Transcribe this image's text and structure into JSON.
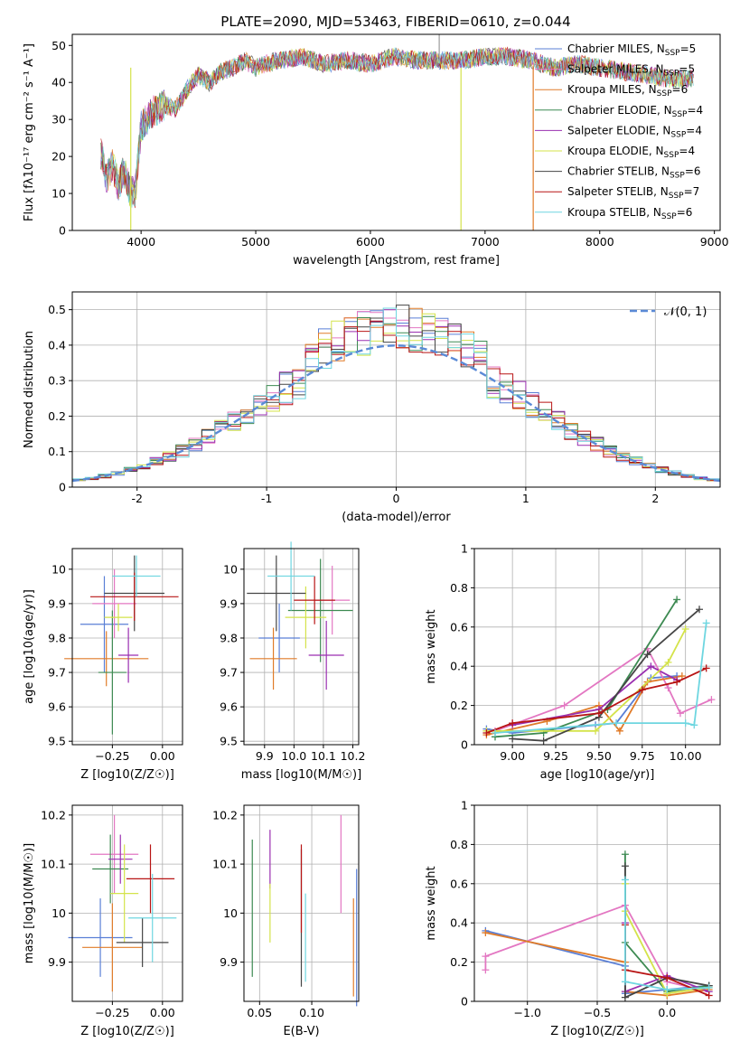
{
  "figure_title": "PLATE=2090, MJD=53463, FIBERID=0610, z=0.044",
  "legend_models": [
    {
      "label": "Chabrier MILES, N",
      "n": "5",
      "color": "#5a7fd6"
    },
    {
      "label": "Salpeter MILES, N",
      "n": "5",
      "color": "#e377c2"
    },
    {
      "label": "Kroupa MILES, N",
      "n": "6",
      "color": "#e07b28"
    },
    {
      "label": "Chabrier ELODIE, N",
      "n": "4",
      "color": "#3d8a52"
    },
    {
      "label": "Salpeter ELODIE, N",
      "n": "4",
      "color": "#9a2fb0"
    },
    {
      "label": "Kroupa ELODIE, N",
      "n": "4",
      "color": "#d4e34a"
    },
    {
      "label": "Chabrier STELIB, N",
      "n": "6",
      "color": "#454545"
    },
    {
      "label": "Salpeter STELIB, N",
      "n": "7",
      "color": "#b81414"
    },
    {
      "label": "Kroupa STELIB, N",
      "n": "6",
      "color": "#6ed6e0"
    }
  ],
  "ssp_subscript": "SSP",
  "chart_data": [
    {
      "id": "spectrum",
      "type": "line",
      "xlabel": "wavelength [Angstrom, rest frame]",
      "ylabel": "Flux [fλ10⁻¹⁷ erg cm⁻² s⁻¹ A⁻¹]",
      "xlim": [
        3400,
        9050
      ],
      "ylim": [
        0,
        53
      ],
      "xticks": [
        4000,
        5000,
        6000,
        7000,
        8000,
        9000
      ],
      "yticks": [
        0,
        10,
        20,
        30,
        40,
        50
      ],
      "grid": false,
      "legend_position": "right",
      "x": [
        3650,
        3700,
        3750,
        3800,
        3850,
        3900,
        3950,
        4000,
        4100,
        4200,
        4300,
        4400,
        4500,
        4600,
        4700,
        4800,
        4900,
        5000,
        5200,
        5400,
        5600,
        5800,
        6000,
        6200,
        6400,
        6600,
        6800,
        7000,
        7200,
        7400,
        7600,
        7800,
        8000,
        8200,
        8400,
        8600,
        8800
      ],
      "y": [
        21,
        14,
        18,
        12,
        16,
        11,
        10,
        28,
        32,
        34,
        33,
        38,
        42,
        40,
        43,
        44,
        46,
        44,
        46,
        47,
        45,
        46,
        45,
        47,
        46,
        46,
        46,
        47,
        47,
        46,
        44,
        45,
        44,
        43,
        42,
        41,
        41
      ]
    },
    {
      "id": "residuals",
      "type": "histogram",
      "xlabel": "(data-model)/error",
      "ylabel": "Normed distribution",
      "xlim": [
        -2.5,
        2.5
      ],
      "ylim": [
        0,
        0.55
      ],
      "xticks": [
        -2,
        -1,
        0,
        1,
        2
      ],
      "yticks": [
        0.0,
        0.1,
        0.2,
        0.3,
        0.4,
        0.5
      ],
      "grid": true,
      "legend_position": "top-right",
      "gaussian_label": "𝒩(0, 1)",
      "bin_width": 0.1
    },
    {
      "id": "age-vs-Z",
      "type": "errorbar",
      "xlabel": "Z [log10(Z/Z☉)]",
      "ylabel": "age  [log10(age/yr)]",
      "xlim": [
        -0.45,
        0.1
      ],
      "ylim": [
        9.49,
        10.06
      ],
      "xticks": [
        -0.25,
        0.0
      ],
      "xticklabels": [
        "−0.25",
        "0.00"
      ],
      "yticks": [
        9.5,
        9.6,
        9.7,
        9.8,
        9.9,
        10.0
      ],
      "grid": true,
      "points": [
        {
          "x": -0.29,
          "xe": 0.12,
          "y": 9.84,
          "ye": 0.14
        },
        {
          "x": -0.24,
          "xe": 0.11,
          "y": 9.9,
          "ye": 0.1
        },
        {
          "x": -0.28,
          "xe": 0.21,
          "y": 9.74,
          "ye": 0.08
        },
        {
          "x": -0.25,
          "xe": 0.07,
          "y": 9.7,
          "ye": 0.18
        },
        {
          "x": -0.17,
          "xe": 0.05,
          "y": 9.75,
          "ye": 0.08
        },
        {
          "x": -0.22,
          "xe": 0.07,
          "y": 9.86,
          "ye": 0.04
        },
        {
          "x": -0.14,
          "xe": 0.15,
          "y": 9.93,
          "ye": 0.11
        },
        {
          "x": -0.14,
          "xe": 0.22,
          "y": 9.92,
          "ye": 0.07
        },
        {
          "x": -0.13,
          "xe": 0.12,
          "y": 9.98,
          "ye": 0.06
        }
      ]
    },
    {
      "id": "age-vs-mass",
      "type": "errorbar",
      "xlabel": "mass [log10(M/M☉)]",
      "ylabel": "",
      "xlim": [
        9.83,
        10.22
      ],
      "ylim": [
        9.49,
        10.06
      ],
      "xticks": [
        9.9,
        10.0,
        10.1,
        10.2
      ],
      "xticklabels": [
        "9.9",
        "10.0",
        "10.1",
        "10.2"
      ],
      "yticks": [
        9.5,
        9.6,
        9.7,
        9.8,
        9.9,
        10.0
      ],
      "grid": true,
      "points": [
        {
          "x": 9.95,
          "xe": 0.07,
          "y": 9.8,
          "ye": 0.1
        },
        {
          "x": 10.13,
          "xe": 0.06,
          "y": 9.91,
          "ye": 0.1
        },
        {
          "x": 9.93,
          "xe": 0.08,
          "y": 9.74,
          "ye": 0.09
        },
        {
          "x": 10.09,
          "xe": 0.11,
          "y": 9.88,
          "ye": 0.15
        },
        {
          "x": 10.11,
          "xe": 0.06,
          "y": 9.75,
          "ye": 0.1
        },
        {
          "x": 10.04,
          "xe": 0.07,
          "y": 9.86,
          "ye": 0.09
        },
        {
          "x": 9.94,
          "xe": 0.1,
          "y": 9.93,
          "ye": 0.11
        },
        {
          "x": 10.07,
          "xe": 0.07,
          "y": 9.91,
          "ye": 0.07
        },
        {
          "x": 9.99,
          "xe": 0.08,
          "y": 9.98,
          "ye": 0.1
        }
      ]
    },
    {
      "id": "weight-vs-age",
      "type": "line",
      "xlabel": "age  [log10(age/yr)]",
      "ylabel": "mass weight",
      "xlim": [
        8.78,
        10.2
      ],
      "ylim": [
        0,
        1
      ],
      "xticks": [
        9.0,
        9.25,
        9.5,
        9.75,
        10.0
      ],
      "xticklabels": [
        "9.00",
        "9.25",
        "9.50",
        "9.75",
        "10.00"
      ],
      "yticks": [
        0.0,
        0.2,
        0.4,
        0.6,
        0.8,
        1.0
      ],
      "grid": true,
      "series": [
        {
          "x": [
            8.85,
            9.0,
            9.48,
            9.6,
            9.8,
            9.95
          ],
          "y": [
            0.08,
            0.06,
            0.1,
            0.11,
            0.34,
            0.35
          ]
        },
        {
          "x": [
            8.9,
            9.3,
            9.78,
            9.9,
            9.97,
            10.15
          ],
          "y": [
            0.07,
            0.2,
            0.49,
            0.29,
            0.16,
            0.23
          ]
        },
        {
          "x": [
            8.85,
            9.2,
            9.5,
            9.62,
            9.78,
            9.98
          ],
          "y": [
            0.05,
            0.12,
            0.2,
            0.07,
            0.32,
            0.35
          ]
        },
        {
          "x": [
            8.9,
            9.18,
            9.55,
            9.95
          ],
          "y": [
            0.04,
            0.06,
            0.18,
            0.74
          ]
        },
        {
          "x": [
            9.0,
            9.5,
            9.8,
            9.95
          ],
          "y": [
            0.1,
            0.18,
            0.4,
            0.33
          ]
        },
        {
          "x": [
            8.85,
            9.48,
            9.9,
            10.0
          ],
          "y": [
            0.07,
            0.07,
            0.42,
            0.59
          ]
        },
        {
          "x": [
            9.0,
            9.18,
            9.5,
            9.78,
            10.08
          ],
          "y": [
            0.03,
            0.02,
            0.14,
            0.46,
            0.69
          ]
        },
        {
          "x": [
            8.85,
            9.0,
            9.5,
            9.75,
            9.95,
            10.12
          ],
          "y": [
            0.06,
            0.11,
            0.16,
            0.28,
            0.32,
            0.39
          ]
        },
        {
          "x": [
            8.9,
            9.6,
            10.0,
            10.05,
            10.12
          ],
          "y": [
            0.06,
            0.11,
            0.11,
            0.1,
            0.62
          ]
        }
      ]
    },
    {
      "id": "mass-vs-Z",
      "type": "errorbar",
      "xlabel": "Z [log10(Z/Z☉)]",
      "ylabel": "mass [log10(M/M☉)]",
      "xlim": [
        -0.45,
        0.1
      ],
      "ylim": [
        9.82,
        10.22
      ],
      "xticks": [
        -0.25,
        0.0
      ],
      "xticklabels": [
        "−0.25",
        "0.00"
      ],
      "yticks": [
        9.9,
        10.0,
        10.1,
        10.2
      ],
      "grid": true,
      "points": [
        {
          "x": -0.31,
          "xe": 0.16,
          "y": 9.95,
          "ye": 0.08
        },
        {
          "x": -0.24,
          "xe": 0.12,
          "y": 10.12,
          "ye": 0.08
        },
        {
          "x": -0.25,
          "xe": 0.15,
          "y": 9.93,
          "ye": 0.09
        },
        {
          "x": -0.26,
          "xe": 0.09,
          "y": 10.09,
          "ye": 0.07
        },
        {
          "x": -0.21,
          "xe": 0.06,
          "y": 10.11,
          "ye": 0.05
        },
        {
          "x": -0.19,
          "xe": 0.07,
          "y": 10.04,
          "ye": 0.1
        },
        {
          "x": -0.1,
          "xe": 0.13,
          "y": 9.94,
          "ye": 0.05
        },
        {
          "x": -0.06,
          "xe": 0.12,
          "y": 10.07,
          "ye": 0.07
        },
        {
          "x": -0.05,
          "xe": 0.12,
          "y": 9.99,
          "ye": 0.09
        }
      ]
    },
    {
      "id": "mass-vs-ebv",
      "type": "errorbar",
      "xlabel": "E(B-V)",
      "ylabel": "",
      "xlim": [
        0.035,
        0.145
      ],
      "ylim": [
        9.82,
        10.22
      ],
      "xticks": [
        0.05,
        0.1
      ],
      "xticklabels": [
        "0.05",
        "0.10"
      ],
      "yticks": [
        9.9,
        10.0,
        10.1,
        10.2
      ],
      "grid": true,
      "points": [
        {
          "x": 0.143,
          "y": 9.95,
          "ye": 0.14
        },
        {
          "x": 0.128,
          "y": 10.1,
          "ye": 0.1
        },
        {
          "x": 0.14,
          "y": 9.93,
          "ye": 0.1
        },
        {
          "x": 0.043,
          "y": 10.01,
          "ye": 0.14
        },
        {
          "x": 0.06,
          "y": 10.11,
          "ye": 0.06
        },
        {
          "x": 0.06,
          "y": 10.0,
          "ye": 0.06
        },
        {
          "x": 0.09,
          "y": 9.99,
          "ye": 0.14
        },
        {
          "x": 0.09,
          "y": 10.05,
          "ye": 0.09
        },
        {
          "x": 0.094,
          "y": 9.95,
          "ye": 0.09
        }
      ]
    },
    {
      "id": "weight-vs-Z",
      "type": "line",
      "xlabel": "Z [log10(Z/Z☉)]",
      "ylabel": "mass weight",
      "xlim": [
        -1.38,
        0.38
      ],
      "ylim": [
        0,
        1
      ],
      "xticks": [
        -1.0,
        -0.5,
        0.0
      ],
      "xticklabels": [
        "−1.0",
        "−0.5",
        "0.0"
      ],
      "yticks": [
        0.0,
        0.2,
        0.4,
        0.6,
        0.8,
        1.0
      ],
      "grid": true,
      "series": [
        {
          "x": [
            -1.3,
            -0.3,
            -0.3,
            0.0,
            0.3
          ],
          "y": [
            0.36,
            0.18,
            0.04,
            0.06,
            0.08
          ]
        },
        {
          "x": [
            -1.3,
            -1.3,
            -0.3,
            0.0,
            0.3
          ],
          "y": [
            0.16,
            0.23,
            0.49,
            0.1,
            0.05
          ]
        },
        {
          "x": [
            -1.3,
            -0.3,
            -0.3,
            0.0,
            0.3
          ],
          "y": [
            0.35,
            0.2,
            0.05,
            0.03,
            0.06
          ]
        },
        {
          "x": [
            -0.3,
            -0.3,
            0.0,
            0.3
          ],
          "y": [
            0.75,
            0.3,
            0.05,
            0.08
          ]
        },
        {
          "x": [
            -0.3,
            -0.3,
            0.0,
            0.3
          ],
          "y": [
            0.4,
            0.05,
            0.13,
            0.05
          ]
        },
        {
          "x": [
            -0.3,
            -0.3,
            0.0,
            0.3
          ],
          "y": [
            0.6,
            0.46,
            0.04,
            0.07
          ]
        },
        {
          "x": [
            -0.3,
            -0.3,
            0.0,
            0.3
          ],
          "y": [
            0.69,
            0.02,
            0.12,
            0.08
          ]
        },
        {
          "x": [
            -0.3,
            -0.3,
            0.0,
            0.3
          ],
          "y": [
            0.39,
            0.16,
            0.12,
            0.03
          ]
        },
        {
          "x": [
            -0.3,
            -0.3,
            0.0,
            0.3
          ],
          "y": [
            0.62,
            0.1,
            0.06,
            0.07
          ]
        }
      ]
    }
  ]
}
